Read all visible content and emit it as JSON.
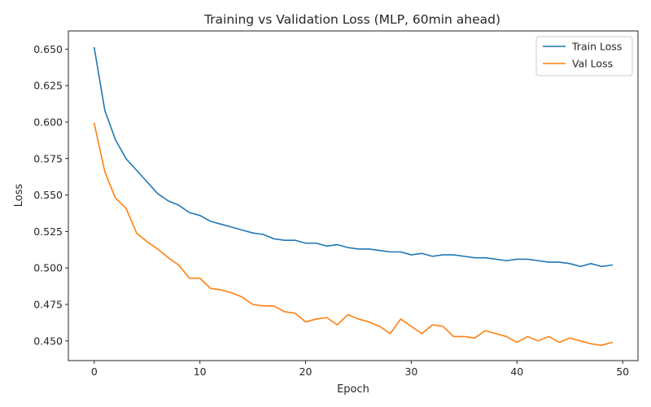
{
  "chart_data": {
    "type": "line",
    "title": "Training vs Validation Loss (MLP, 60min ahead)",
    "xlabel": "Epoch",
    "ylabel": "Loss",
    "xlim": [
      -2.45,
      51.45
    ],
    "ylim": [
      0.4365,
      0.6625
    ],
    "xticks": [
      0,
      10,
      20,
      30,
      40,
      50
    ],
    "yticks": [
      0.45,
      0.475,
      0.5,
      0.525,
      0.55,
      0.575,
      0.6,
      0.625,
      0.65
    ],
    "ytick_labels": [
      "0.450",
      "0.475",
      "0.500",
      "0.525",
      "0.550",
      "0.575",
      "0.600",
      "0.625",
      "0.650"
    ],
    "grid": false,
    "legend_position": "top-right",
    "x": [
      0,
      1,
      2,
      3,
      4,
      5,
      6,
      7,
      8,
      9,
      10,
      11,
      12,
      13,
      14,
      15,
      16,
      17,
      18,
      19,
      20,
      21,
      22,
      23,
      24,
      25,
      26,
      27,
      28,
      29,
      30,
      31,
      32,
      33,
      34,
      35,
      36,
      37,
      38,
      39,
      40,
      41,
      42,
      43,
      44,
      45,
      46,
      47,
      48,
      49
    ],
    "series": [
      {
        "name": "Train Loss",
        "color": "#1f77b4",
        "values": [
          0.651,
          0.608,
          0.588,
          0.575,
          0.567,
          0.559,
          0.551,
          0.546,
          0.543,
          0.538,
          0.536,
          0.532,
          0.53,
          0.528,
          0.526,
          0.524,
          0.523,
          0.52,
          0.519,
          0.519,
          0.517,
          0.517,
          0.515,
          0.516,
          0.514,
          0.513,
          0.513,
          0.512,
          0.511,
          0.511,
          0.509,
          0.51,
          0.508,
          0.509,
          0.509,
          0.508,
          0.507,
          0.507,
          0.506,
          0.505,
          0.506,
          0.506,
          0.505,
          0.504,
          0.504,
          0.503,
          0.501,
          0.503,
          0.501,
          0.502
        ]
      },
      {
        "name": "Val Loss",
        "color": "#ff7f0e",
        "values": [
          0.599,
          0.566,
          0.548,
          0.541,
          0.524,
          0.518,
          0.513,
          0.507,
          0.502,
          0.493,
          0.493,
          0.486,
          0.485,
          0.483,
          0.48,
          0.475,
          0.474,
          0.474,
          0.47,
          0.469,
          0.463,
          0.465,
          0.466,
          0.461,
          0.468,
          0.465,
          0.463,
          0.46,
          0.455,
          0.465,
          0.46,
          0.455,
          0.461,
          0.46,
          0.453,
          0.453,
          0.452,
          0.457,
          0.455,
          0.453,
          0.449,
          0.453,
          0.45,
          0.453,
          0.449,
          0.452,
          0.45,
          0.448,
          0.447,
          0.449
        ]
      }
    ]
  }
}
